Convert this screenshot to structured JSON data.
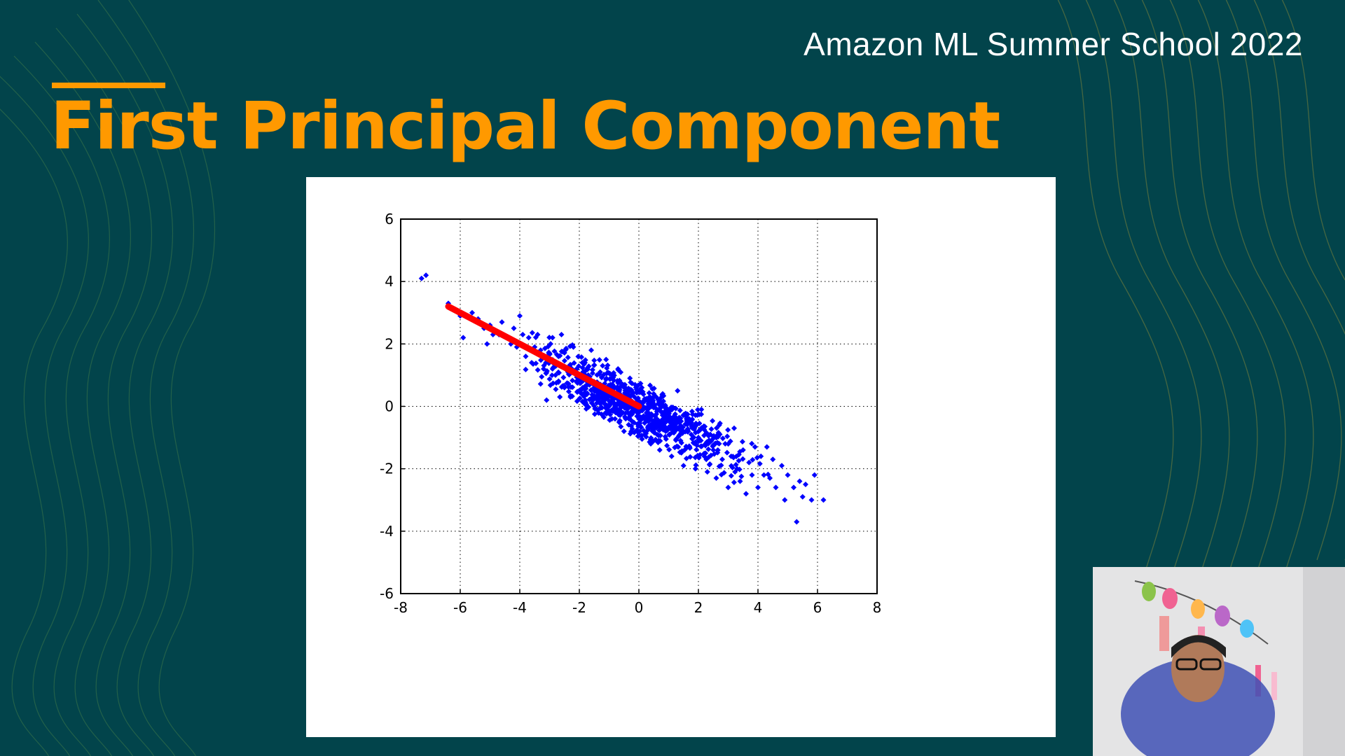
{
  "header": {
    "event_title": "Amazon ML Summer School 2022",
    "slide_title": "First Principal Component"
  },
  "colors": {
    "background": "#02444b",
    "accent": "#ff9900",
    "points": "#0000ff",
    "component_line": "#ff0000"
  },
  "chart_data": {
    "type": "scatter",
    "title": "",
    "xlabel": "",
    "ylabel": "",
    "xlim": [
      -8,
      8
    ],
    "ylim": [
      -6,
      6
    ],
    "xticks": [
      "-8",
      "-6",
      "-4",
      "-2",
      "0",
      "2",
      "4",
      "6",
      "8"
    ],
    "yticks": [
      "6",
      "4",
      "2",
      "0",
      "-2",
      "-4",
      "-6"
    ],
    "grid": true,
    "grid_style": "dotted",
    "series": [
      {
        "marker": "diamond",
        "color": "#0000ff",
        "points": [
          [
            -7.3,
            4.1
          ],
          [
            -7.15,
            4.2
          ],
          [
            -6.4,
            3.3
          ],
          [
            -6.2,
            3.1
          ],
          [
            -6.0,
            2.9
          ],
          [
            -5.9,
            2.2
          ],
          [
            -5.6,
            3.0
          ],
          [
            -5.4,
            2.8
          ],
          [
            -5.2,
            2.5
          ],
          [
            -5.1,
            2.0
          ],
          [
            -5.0,
            2.6
          ],
          [
            -4.9,
            2.3
          ],
          [
            -4.7,
            2.3
          ],
          [
            -4.6,
            2.7
          ],
          [
            -4.4,
            2.2
          ],
          [
            -4.3,
            2.0
          ],
          [
            -4.2,
            2.5
          ],
          [
            -4.1,
            1.9
          ],
          [
            -4.0,
            2.9
          ],
          [
            -3.9,
            2.3
          ],
          [
            -3.8,
            1.6
          ],
          [
            -3.7,
            2.2
          ],
          [
            -3.6,
            1.4
          ],
          [
            -3.5,
            1.9
          ],
          [
            -3.4,
            2.3
          ],
          [
            -3.3,
            1.8
          ],
          [
            -3.2,
            1.2
          ],
          [
            -3.1,
            0.2
          ],
          [
            -3.0,
            1.7
          ],
          [
            -2.9,
            2.2
          ],
          [
            -2.8,
            1.0
          ],
          [
            -2.7,
            1.6
          ],
          [
            -2.6,
            2.3
          ],
          [
            -2.5,
            0.6
          ],
          [
            -2.4,
            1.2
          ],
          [
            -2.3,
            0.3
          ],
          [
            -2.2,
            1.9
          ],
          [
            -2.1,
            0.8
          ],
          [
            -2.0,
            0.5
          ],
          [
            -1.9,
            1.4
          ],
          [
            -1.8,
            0.2
          ],
          [
            -1.7,
            1.0
          ],
          [
            -1.6,
            1.8
          ],
          [
            -1.5,
            0.6
          ],
          [
            -1.4,
            -0.1
          ],
          [
            -1.3,
            1.1
          ],
          [
            -1.2,
            0.3
          ],
          [
            -1.1,
            1.5
          ],
          [
            -1.0,
            0.0
          ],
          [
            -0.9,
            0.7
          ],
          [
            -0.8,
            -0.4
          ],
          [
            -0.7,
            1.2
          ],
          [
            -0.6,
            0.2
          ],
          [
            -0.5,
            -0.8
          ],
          [
            -0.4,
            0.5
          ],
          [
            -0.3,
            0.9
          ],
          [
            -0.2,
            -0.5
          ],
          [
            -0.1,
            0.1
          ],
          [
            0.0,
            -0.2
          ],
          [
            0.1,
            0.6
          ],
          [
            0.2,
            -0.9
          ],
          [
            0.3,
            -0.1
          ],
          [
            0.4,
            -1.2
          ],
          [
            0.5,
            0.3
          ],
          [
            0.6,
            -0.5
          ],
          [
            0.7,
            -1.4
          ],
          [
            0.8,
            0.4
          ],
          [
            0.9,
            -0.8
          ],
          [
            1.0,
            -0.2
          ],
          [
            1.1,
            -1.6
          ],
          [
            1.2,
            -0.6
          ],
          [
            1.3,
            0.5
          ],
          [
            1.4,
            -1.1
          ],
          [
            1.5,
            -1.9
          ],
          [
            1.6,
            -0.4
          ],
          [
            1.7,
            -1.3
          ],
          [
            1.8,
            -0.7
          ],
          [
            1.9,
            -2.0
          ],
          [
            2.0,
            -1.0
          ],
          [
            2.1,
            -0.1
          ],
          [
            2.2,
            -1.6
          ],
          [
            2.3,
            -2.1
          ],
          [
            2.4,
            -0.9
          ],
          [
            2.5,
            -1.4
          ],
          [
            2.6,
            -2.3
          ],
          [
            2.7,
            -0.6
          ],
          [
            2.8,
            -1.7
          ],
          [
            2.9,
            -1.2
          ],
          [
            3.0,
            -2.6
          ],
          [
            3.1,
            -1.6
          ],
          [
            3.2,
            -0.7
          ],
          [
            3.3,
            -2.0
          ],
          [
            3.4,
            -2.4
          ],
          [
            3.5,
            -1.4
          ],
          [
            3.6,
            -2.8
          ],
          [
            3.7,
            -1.8
          ],
          [
            3.8,
            -2.2
          ],
          [
            3.9,
            -1.3
          ],
          [
            4.0,
            -2.6
          ],
          [
            4.1,
            -1.6
          ],
          [
            4.2,
            -2.2
          ],
          [
            4.3,
            -1.3
          ],
          [
            4.4,
            -2.3
          ],
          [
            4.5,
            -1.7
          ],
          [
            4.6,
            -2.6
          ],
          [
            4.8,
            -1.9
          ],
          [
            4.9,
            -3.0
          ],
          [
            5.0,
            -2.2
          ],
          [
            5.2,
            -2.6
          ],
          [
            5.3,
            -3.7
          ],
          [
            5.4,
            -2.4
          ],
          [
            5.5,
            -2.9
          ],
          [
            5.6,
            -2.5
          ],
          [
            5.8,
            -3.0
          ],
          [
            5.9,
            -2.2
          ],
          [
            6.2,
            -3.0
          ]
        ]
      }
    ],
    "component_line": {
      "color": "#ff0000",
      "from": [
        -6.4,
        3.2
      ],
      "to": [
        0.0,
        0.0
      ]
    }
  }
}
